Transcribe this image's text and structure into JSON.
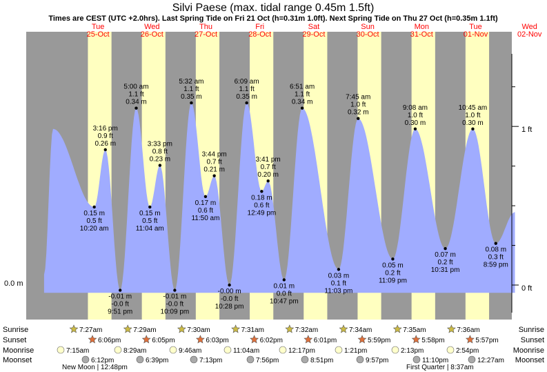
{
  "chart_data": {
    "type": "area",
    "title": "Silvi Paese (max. tidal range 0.45m 1.5ft)",
    "subtitle": "Times are CEST (UTC +2.0hrs). Last Spring Tide on Fri 21 Oct (h=0.31m 1.0ft). Next Spring Tide on Thu 27 Oct (h=0.35m 1.1ft)",
    "days": [
      {
        "dow": "Tue",
        "date": "25-Oct"
      },
      {
        "dow": "Wed",
        "date": "26-Oct"
      },
      {
        "dow": "Thu",
        "date": "27-Oct"
      },
      {
        "dow": "Fri",
        "date": "28-Oct"
      },
      {
        "dow": "Sat",
        "date": "29-Oct"
      },
      {
        "dow": "Sun",
        "date": "30-Oct"
      },
      {
        "dow": "Mon",
        "date": "31-Oct"
      },
      {
        "dow": "Tue",
        "date": "01-Nov"
      },
      {
        "dow": "Wed",
        "date": "02-Nov"
      }
    ],
    "left_axis": {
      "unit": "m",
      "ticks": [
        {
          "value": 0.0,
          "label": "0.0 m"
        }
      ]
    },
    "right_axis": {
      "unit": "ft",
      "ticks": [
        {
          "value": 0,
          "label": "0 ft"
        },
        {
          "value": 1,
          "label": "1 ft"
        }
      ]
    },
    "ylim_m": [
      -0.05,
      0.44
    ],
    "xlim_hours": [
      -15,
      200
    ],
    "tides": [
      {
        "hour": 10.33,
        "m": 0.15,
        "time": "10:20 am",
        "ft": "0.5 ft",
        "m_label": "0.15 m",
        "type": "low"
      },
      {
        "hour": 15.27,
        "m": 0.26,
        "time": "3:16 pm",
        "ft": "0.9 ft",
        "m_label": "0.26 m",
        "type": "high"
      },
      {
        "hour": 21.85,
        "m": -0.01,
        "time": "9:51 pm",
        "ft": "-0.0 ft",
        "m_label": "-0.01 m",
        "type": "low"
      },
      {
        "hour": 29.0,
        "m": 0.34,
        "time": "5:00 am",
        "ft": "1.1 ft",
        "m_label": "0.34 m",
        "type": "high"
      },
      {
        "hour": 35.07,
        "m": 0.15,
        "time": "11:04 am",
        "ft": "0.5 ft",
        "m_label": "0.15 m",
        "type": "low"
      },
      {
        "hour": 39.55,
        "m": 0.23,
        "time": "3:33 pm",
        "ft": "0.8 ft",
        "m_label": "0.23 m",
        "type": "high"
      },
      {
        "hour": 46.15,
        "m": -0.01,
        "time": "10:09 pm",
        "ft": "-0.0 ft",
        "m_label": "-0.01 m",
        "type": "low"
      },
      {
        "hour": 53.53,
        "m": 0.35,
        "time": "5:32 am",
        "ft": "1.1 ft",
        "m_label": "0.35 m",
        "type": "high"
      },
      {
        "hour": 59.83,
        "m": 0.17,
        "time": "11:50 am",
        "ft": "0.6 ft",
        "m_label": "0.17 m",
        "type": "low"
      },
      {
        "hour": 63.73,
        "m": 0.21,
        "time": "3:44 pm",
        "ft": "0.7 ft",
        "m_label": "0.21 m",
        "type": "high"
      },
      {
        "hour": 70.47,
        "m": -0.0,
        "time": "10:28 pm",
        "ft": "-0.0 ft",
        "m_label": "-0.00 m",
        "type": "low"
      },
      {
        "hour": 78.15,
        "m": 0.35,
        "time": "6:09 am",
        "ft": "1.1 ft",
        "m_label": "0.35 m",
        "type": "high"
      },
      {
        "hour": 84.82,
        "m": 0.18,
        "time": "12:49 pm",
        "ft": "0.6 ft",
        "m_label": "0.18 m",
        "type": "low"
      },
      {
        "hour": 87.68,
        "m": 0.2,
        "time": "3:41 pm",
        "ft": "0.7 ft",
        "m_label": "0.20 m",
        "type": "high"
      },
      {
        "hour": 94.78,
        "m": 0.01,
        "time": "10:47 pm",
        "ft": "0.0 ft",
        "m_label": "0.01 m",
        "type": "low"
      },
      {
        "hour": 102.85,
        "m": 0.34,
        "time": "6:51 am",
        "ft": "1.1 ft",
        "m_label": "0.34 m",
        "type": "high"
      },
      {
        "hour": 119.05,
        "m": 0.03,
        "time": "11:03 pm",
        "ft": "0.1 ft",
        "m_label": "0.03 m",
        "type": "low"
      },
      {
        "hour": 127.75,
        "m": 0.32,
        "time": "7:45 am",
        "ft": "1.0 ft",
        "m_label": "0.32 m",
        "type": "high"
      },
      {
        "hour": 143.15,
        "m": 0.05,
        "time": "11:09 pm",
        "ft": "0.2 ft",
        "m_label": "0.05 m",
        "type": "low"
      },
      {
        "hour": 153.13,
        "m": 0.3,
        "time": "9:08 am",
        "ft": "1.0 ft",
        "m_label": "0.30 m",
        "type": "high"
      },
      {
        "hour": 166.52,
        "m": 0.07,
        "time": "10:31 pm",
        "ft": "0.2 ft",
        "m_label": "0.07 m",
        "type": "low"
      },
      {
        "hour": 178.75,
        "m": 0.3,
        "time": "10:45 am",
        "ft": "1.0 ft",
        "m_label": "0.30 m",
        "type": "high"
      },
      {
        "hour": 188.98,
        "m": 0.08,
        "time": "8:59 pm",
        "ft": "0.3 ft",
        "m_label": "0.08 m",
        "type": "low"
      }
    ],
    "curve_extents": {
      "start": {
        "hour": -12.0,
        "m": 0.02
      },
      "pre_peak": {
        "hour": -8.0,
        "m": 0.3
      },
      "end": {
        "hour": 197.5,
        "m": 0.14
      },
      "sat_shoulder": {
        "hour": 110.0,
        "m": 0.18
      }
    },
    "sun": {
      "sunrise_hour": 7.5,
      "sunset_hour": 18.0
    },
    "astro": {
      "labels": [
        "Sunrise",
        "Sunset",
        "Moonrise",
        "Moonset"
      ],
      "sunrise": [
        "7:27am",
        "7:29am",
        "7:30am",
        "7:31am",
        "7:32am",
        "7:34am",
        "7:35am",
        "7:36am"
      ],
      "sunset": [
        "6:06pm",
        "6:05pm",
        "6:03pm",
        "6:02pm",
        "6:01pm",
        "5:59pm",
        "5:58pm",
        "5:57pm"
      ],
      "moonrise": [
        "7:15am",
        "8:29am",
        "9:46am",
        "11:04am",
        "12:17pm",
        "1:21pm",
        "2:13pm",
        "2:54pm"
      ],
      "moonset": [
        "6:12pm",
        "6:39pm",
        "7:13pm",
        "7:56pm",
        "8:51pm",
        "9:57pm",
        "11:10pm",
        "12:27am"
      ],
      "moon_phases": [
        {
          "label": "New Moon",
          "time": "12:48pm"
        },
        {
          "label": "First Quarter",
          "time": "8:37am"
        }
      ]
    },
    "colors": {
      "night": "#999999",
      "day": "#ffffc0",
      "water": "#a0acff",
      "sun_icon": "#ccbb44",
      "sunset_icon": "#e0703a",
      "moon_icon": "#ffffcc",
      "moonset_icon": "#aaaaaa",
      "title": "#000000",
      "day_label": "#ff0000"
    }
  }
}
